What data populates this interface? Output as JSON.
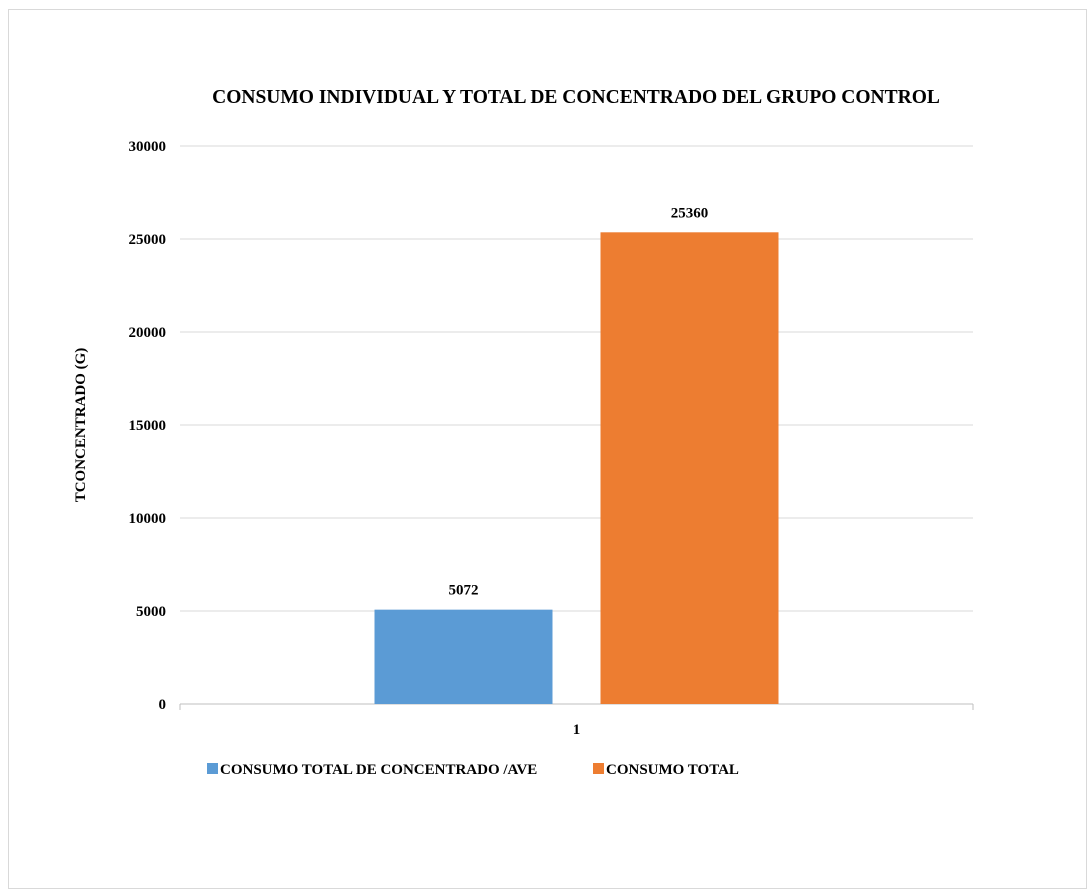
{
  "chart_data": {
    "type": "bar",
    "title": "CONSUMO INDIVIDUAL Y TOTAL DE CONCENTRADO DEL GRUPO CONTROL",
    "xlabel": "",
    "ylabel": "TCONCENTRADO (G)",
    "categories": [
      "1"
    ],
    "ylim": [
      0,
      30000
    ],
    "yticks": [
      "0",
      "5000",
      "10000",
      "15000",
      "20000",
      "25000",
      "30000"
    ],
    "grid": true,
    "legend_position": "bottom",
    "series": [
      {
        "name": "CONSUMO TOTAL DE CONCENTRADO /AVE",
        "values": [
          5072
        ],
        "labels": [
          "5072"
        ],
        "color": "#5b9bd5"
      },
      {
        "name": "CONSUMO TOTAL",
        "values": [
          25360
        ],
        "labels": [
          "25360"
        ],
        "color": "#ed7d31"
      }
    ]
  }
}
